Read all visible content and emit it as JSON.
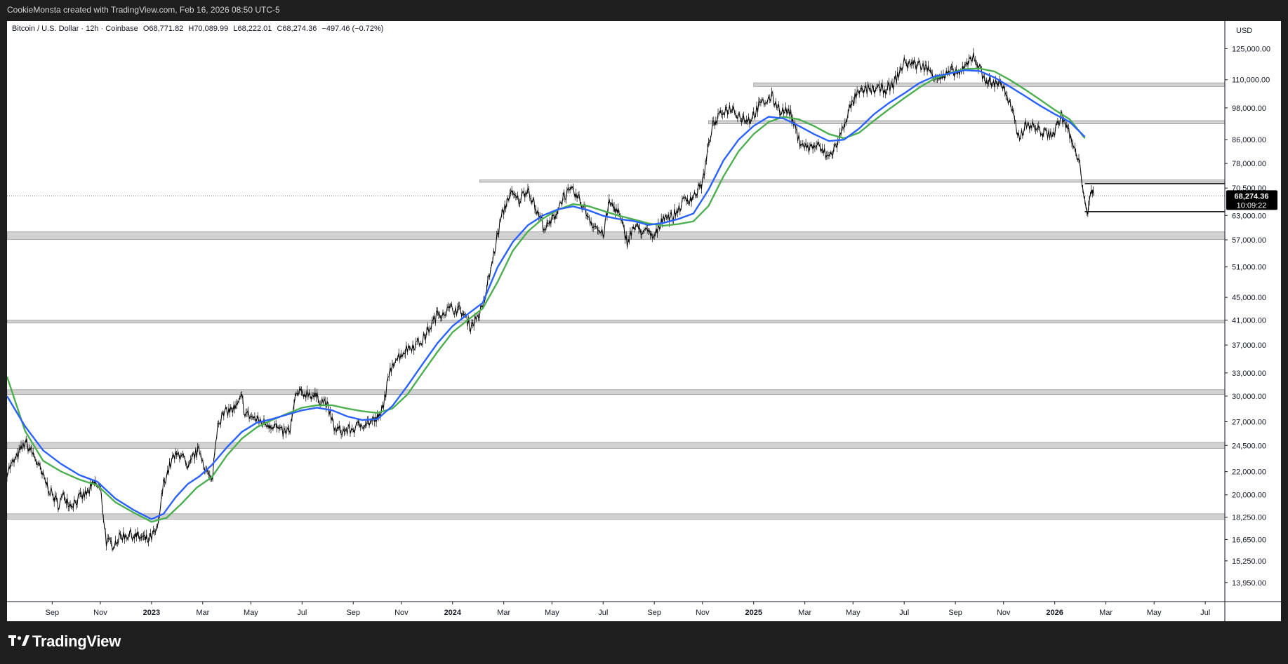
{
  "header": {
    "credit": "CookieMonsta created with TradingView.com, Feb 16, 2026 08:50 UTC-5"
  },
  "legend": {
    "symbol": "Bitcoin / U.S. Dollar · 12h · Coinbase",
    "open": "O68,771.82",
    "high": "H70,089.99",
    "low": "L68,222.01",
    "close": "C68,274.36",
    "change": "−497.46 (−0.72%)",
    "currency": "USD"
  },
  "last_price": {
    "value": "68,274.36",
    "countdown": "10:09:22"
  },
  "footer": {
    "brand": "TradingView"
  },
  "colors": {
    "background": "#ffffff",
    "candles": "#000000",
    "ma_blue": "#2962ff",
    "ma_green": "#4caf50",
    "zone_fill": "#d1d1d1",
    "tag_bg": "#000000"
  },
  "chart_data": {
    "type": "line",
    "title": "Bitcoin / U.S. Dollar · 12h · Coinbase",
    "scale": "log",
    "y_ticks": [
      125000,
      110000,
      98000,
      86000,
      78000,
      70500,
      63000,
      57000,
      51000,
      45000,
      41000,
      37000,
      33000,
      30000,
      27000,
      24500,
      22000,
      20000,
      18250,
      16650,
      15250,
      13950
    ],
    "y_tick_labels": [
      "125,000.00",
      "110,000.00",
      "98,000.00",
      "86,000.00",
      "78,000.00",
      "70,500.00",
      "63,000.00",
      "57,000.00",
      "51,000.00",
      "45,000.00",
      "41,000.00",
      "37,000.00",
      "33,000.00",
      "30,000.00",
      "27,000.00",
      "24,500.00",
      "22,000.00",
      "20,000.00",
      "18,250.00",
      "16,650.00",
      "15,250.00",
      "13,950.00"
    ],
    "ylim": [
      12900,
      140000
    ],
    "x_ticks": [
      {
        "label": "Sep",
        "t": 2022.67,
        "bold": false
      },
      {
        "label": "Nov",
        "t": 2022.83,
        "bold": false
      },
      {
        "label": "2023",
        "t": 2023.0,
        "bold": true
      },
      {
        "label": "Mar",
        "t": 2023.17,
        "bold": false
      },
      {
        "label": "May",
        "t": 2023.33,
        "bold": false
      },
      {
        "label": "Jul",
        "t": 2023.5,
        "bold": false
      },
      {
        "label": "Sep",
        "t": 2023.67,
        "bold": false
      },
      {
        "label": "Nov",
        "t": 2023.83,
        "bold": false
      },
      {
        "label": "2024",
        "t": 2024.0,
        "bold": true
      },
      {
        "label": "Mar",
        "t": 2024.17,
        "bold": false
      },
      {
        "label": "May",
        "t": 2024.33,
        "bold": false
      },
      {
        "label": "Jul",
        "t": 2024.5,
        "bold": false
      },
      {
        "label": "Sep",
        "t": 2024.67,
        "bold": false
      },
      {
        "label": "Nov",
        "t": 2024.83,
        "bold": false
      },
      {
        "label": "2025",
        "t": 2025.0,
        "bold": true
      },
      {
        "label": "Mar",
        "t": 2025.17,
        "bold": false
      },
      {
        "label": "May",
        "t": 2025.33,
        "bold": false
      },
      {
        "label": "Jul",
        "t": 2025.5,
        "bold": false
      },
      {
        "label": "Sep",
        "t": 2025.67,
        "bold": false
      },
      {
        "label": "Nov",
        "t": 2025.83,
        "bold": false
      },
      {
        "label": "2026",
        "t": 2026.0,
        "bold": true
      },
      {
        "label": "Mar",
        "t": 2026.17,
        "bold": false
      },
      {
        "label": "May",
        "t": 2026.33,
        "bold": false
      },
      {
        "label": "Jul",
        "t": 2026.5,
        "bold": false
      }
    ],
    "xlim": [
      2022.52,
      2026.565
    ],
    "price": [
      [
        2022.52,
        22000
      ],
      [
        2022.55,
        23200
      ],
      [
        2022.58,
        24800
      ],
      [
        2022.61,
        23500
      ],
      [
        2022.64,
        21500
      ],
      [
        2022.67,
        20000
      ],
      [
        2022.69,
        19200
      ],
      [
        2022.71,
        20000
      ],
      [
        2022.73,
        19200
      ],
      [
        2022.76,
        19700
      ],
      [
        2022.79,
        20200
      ],
      [
        2022.81,
        21000
      ],
      [
        2022.83,
        20500
      ],
      [
        2022.85,
        16500
      ],
      [
        2022.87,
        16300
      ],
      [
        2022.9,
        16900
      ],
      [
        2022.93,
        17000
      ],
      [
        2022.96,
        16800
      ],
      [
        2022.99,
        16600
      ],
      [
        2023.02,
        17300
      ],
      [
        2023.04,
        21000
      ],
      [
        2023.07,
        23200
      ],
      [
        2023.1,
        23800
      ],
      [
        2023.12,
        22000
      ],
      [
        2023.14,
        23500
      ],
      [
        2023.16,
        24000
      ],
      [
        2023.18,
        22200
      ],
      [
        2023.2,
        21000
      ],
      [
        2023.22,
        27000
      ],
      [
        2023.25,
        28200
      ],
      [
        2023.28,
        28500
      ],
      [
        2023.3,
        29800
      ],
      [
        2023.31,
        28000
      ],
      [
        2023.35,
        27200
      ],
      [
        2023.38,
        26800
      ],
      [
        2023.41,
        26600
      ],
      [
        2023.43,
        25800
      ],
      [
        2023.46,
        26000
      ],
      [
        2023.48,
        30200
      ],
      [
        2023.52,
        30400
      ],
      [
        2023.55,
        29800
      ],
      [
        2023.58,
        29200
      ],
      [
        2023.61,
        26100
      ],
      [
        2023.64,
        26000
      ],
      [
        2023.67,
        26200
      ],
      [
        2023.7,
        26800
      ],
      [
        2023.73,
        27000
      ],
      [
        2023.76,
        27500
      ],
      [
        2023.8,
        34500
      ],
      [
        2023.85,
        36500
      ],
      [
        2023.9,
        37700
      ],
      [
        2023.95,
        42000
      ],
      [
        2024.0,
        43000
      ],
      [
        2024.03,
        42500
      ],
      [
        2024.06,
        40000
      ],
      [
        2024.1,
        43000
      ],
      [
        2024.13,
        51500
      ],
      [
        2024.16,
        62000
      ],
      [
        2024.19,
        69000
      ],
      [
        2024.22,
        67000
      ],
      [
        2024.25,
        70500
      ],
      [
        2024.28,
        64000
      ],
      [
        2024.31,
        59500
      ],
      [
        2024.34,
        63000
      ],
      [
        2024.37,
        68500
      ],
      [
        2024.4,
        69500
      ],
      [
        2024.43,
        66000
      ],
      [
        2024.46,
        61500
      ],
      [
        2024.5,
        58000
      ],
      [
        2024.52,
        66500
      ],
      [
        2024.55,
        64000
      ],
      [
        2024.58,
        56500
      ],
      [
        2024.6,
        60000
      ],
      [
        2024.64,
        59000
      ],
      [
        2024.67,
        57500
      ],
      [
        2024.7,
        63000
      ],
      [
        2024.73,
        62500
      ],
      [
        2024.77,
        67000
      ],
      [
        2024.8,
        68000
      ],
      [
        2024.83,
        72000
      ],
      [
        2024.86,
        90000
      ],
      [
        2024.9,
        97000
      ],
      [
        2024.93,
        98000
      ],
      [
        2024.96,
        94000
      ],
      [
        2024.99,
        93500
      ],
      [
        2025.02,
        99000
      ],
      [
        2025.06,
        102500
      ],
      [
        2025.09,
        97000
      ],
      [
        2025.12,
        96500
      ],
      [
        2025.15,
        86000
      ],
      [
        2025.18,
        83000
      ],
      [
        2025.21,
        84000
      ],
      [
        2025.25,
        80000
      ],
      [
        2025.28,
        85000
      ],
      [
        2025.31,
        95000
      ],
      [
        2025.34,
        103000
      ],
      [
        2025.38,
        106000
      ],
      [
        2025.42,
        105500
      ],
      [
        2025.46,
        107000
      ],
      [
        2025.5,
        118000
      ],
      [
        2025.53,
        117500
      ],
      [
        2025.57,
        116000
      ],
      [
        2025.6,
        112000
      ],
      [
        2025.63,
        111000
      ],
      [
        2025.66,
        114000
      ],
      [
        2025.69,
        113000
      ],
      [
        2025.73,
        122000
      ],
      [
        2025.76,
        112000
      ],
      [
        2025.79,
        108000
      ],
      [
        2025.82,
        109500
      ],
      [
        2025.86,
        96000
      ],
      [
        2025.88,
        87000
      ],
      [
        2025.91,
        92000
      ],
      [
        2025.94,
        90000
      ],
      [
        2025.97,
        88000
      ],
      [
        2026.0,
        88500
      ],
      [
        2026.02,
        95000
      ],
      [
        2026.04,
        91000
      ],
      [
        2026.06,
        84000
      ],
      [
        2026.08,
        78500
      ],
      [
        2026.1,
        68000
      ],
      [
        2026.11,
        62000
      ],
      [
        2026.115,
        67000
      ],
      [
        2026.125,
        70000
      ],
      [
        2026.13,
        68274
      ]
    ],
    "ma_blue": [
      [
        2022.52,
        30000
      ],
      [
        2022.58,
        26500
      ],
      [
        2022.64,
        24000
      ],
      [
        2022.7,
        22700
      ],
      [
        2022.76,
        21700
      ],
      [
        2022.82,
        21100
      ],
      [
        2022.88,
        19700
      ],
      [
        2022.94,
        18800
      ],
      [
        2023.0,
        18100
      ],
      [
        2023.04,
        18500
      ],
      [
        2023.08,
        19800
      ],
      [
        2023.12,
        20900
      ],
      [
        2023.16,
        21600
      ],
      [
        2023.2,
        22600
      ],
      [
        2023.25,
        24300
      ],
      [
        2023.3,
        25900
      ],
      [
        2023.35,
        26900
      ],
      [
        2023.4,
        27300
      ],
      [
        2023.45,
        27800
      ],
      [
        2023.5,
        28300
      ],
      [
        2023.55,
        28600
      ],
      [
        2023.6,
        28300
      ],
      [
        2023.65,
        27600
      ],
      [
        2023.7,
        27200
      ],
      [
        2023.75,
        27300
      ],
      [
        2023.8,
        28800
      ],
      [
        2023.85,
        31300
      ],
      [
        2023.9,
        34200
      ],
      [
        2023.95,
        37300
      ],
      [
        2024.0,
        40000
      ],
      [
        2024.05,
        42000
      ],
      [
        2024.1,
        44000
      ],
      [
        2024.15,
        51000
      ],
      [
        2024.2,
        56500
      ],
      [
        2024.25,
        60500
      ],
      [
        2024.3,
        63000
      ],
      [
        2024.35,
        64600
      ],
      [
        2024.4,
        65400
      ],
      [
        2024.45,
        64400
      ],
      [
        2024.5,
        62900
      ],
      [
        2024.55,
        62100
      ],
      [
        2024.6,
        61600
      ],
      [
        2024.65,
        60600
      ],
      [
        2024.7,
        61100
      ],
      [
        2024.75,
        62100
      ],
      [
        2024.8,
        63500
      ],
      [
        2024.85,
        70000
      ],
      [
        2024.9,
        79000
      ],
      [
        2024.95,
        86000
      ],
      [
        2025.0,
        91000
      ],
      [
        2025.05,
        94500
      ],
      [
        2025.1,
        93800
      ],
      [
        2025.15,
        91000
      ],
      [
        2025.2,
        88000
      ],
      [
        2025.25,
        85500
      ],
      [
        2025.3,
        86000
      ],
      [
        2025.35,
        90000
      ],
      [
        2025.4,
        95500
      ],
      [
        2025.45,
        100000
      ],
      [
        2025.5,
        104000
      ],
      [
        2025.55,
        108500
      ],
      [
        2025.6,
        111500
      ],
      [
        2025.65,
        112800
      ],
      [
        2025.7,
        114400
      ],
      [
        2025.75,
        114000
      ],
      [
        2025.8,
        111000
      ],
      [
        2025.85,
        107000
      ],
      [
        2025.9,
        103000
      ],
      [
        2025.95,
        99000
      ],
      [
        2026.0,
        95500
      ],
      [
        2026.05,
        92500
      ],
      [
        2026.1,
        87000
      ]
    ],
    "ma_green": [
      [
        2022.52,
        32500
      ],
      [
        2022.58,
        26000
      ],
      [
        2022.64,
        23000
      ],
      [
        2022.7,
        22000
      ],
      [
        2022.76,
        21300
      ],
      [
        2022.82,
        20800
      ],
      [
        2022.88,
        19400
      ],
      [
        2022.94,
        18600
      ],
      [
        2023.0,
        17900
      ],
      [
        2023.05,
        18200
      ],
      [
        2023.1,
        19300
      ],
      [
        2023.15,
        20600
      ],
      [
        2023.2,
        21500
      ],
      [
        2023.25,
        23500
      ],
      [
        2023.3,
        25200
      ],
      [
        2023.35,
        26400
      ],
      [
        2023.4,
        27200
      ],
      [
        2023.45,
        27900
      ],
      [
        2023.5,
        28600
      ],
      [
        2023.55,
        28900
      ],
      [
        2023.6,
        28900
      ],
      [
        2023.65,
        28500
      ],
      [
        2023.7,
        28200
      ],
      [
        2023.75,
        28000
      ],
      [
        2023.8,
        28500
      ],
      [
        2023.85,
        30200
      ],
      [
        2023.9,
        33000
      ],
      [
        2023.95,
        36000
      ],
      [
        2024.0,
        39000
      ],
      [
        2024.05,
        41000
      ],
      [
        2024.1,
        43000
      ],
      [
        2024.15,
        48000
      ],
      [
        2024.2,
        54500
      ],
      [
        2024.25,
        59000
      ],
      [
        2024.3,
        62200
      ],
      [
        2024.35,
        64500
      ],
      [
        2024.4,
        66000
      ],
      [
        2024.45,
        65500
      ],
      [
        2024.5,
        64200
      ],
      [
        2024.55,
        63000
      ],
      [
        2024.6,
        62000
      ],
      [
        2024.65,
        61000
      ],
      [
        2024.7,
        60400
      ],
      [
        2024.75,
        60800
      ],
      [
        2024.8,
        61500
      ],
      [
        2024.85,
        65500
      ],
      [
        2024.9,
        74000
      ],
      [
        2024.95,
        82000
      ],
      [
        2025.0,
        88000
      ],
      [
        2025.05,
        92500
      ],
      [
        2025.1,
        94500
      ],
      [
        2025.15,
        93500
      ],
      [
        2025.2,
        91000
      ],
      [
        2025.25,
        88000
      ],
      [
        2025.3,
        86500
      ],
      [
        2025.35,
        88500
      ],
      [
        2025.4,
        93000
      ],
      [
        2025.45,
        97500
      ],
      [
        2025.5,
        102000
      ],
      [
        2025.55,
        106500
      ],
      [
        2025.6,
        110500
      ],
      [
        2025.65,
        113000
      ],
      [
        2025.7,
        114900
      ],
      [
        2025.75,
        115200
      ],
      [
        2025.8,
        113800
      ],
      [
        2025.85,
        110000
      ],
      [
        2025.9,
        105800
      ],
      [
        2025.95,
        101500
      ],
      [
        2026.0,
        97200
      ],
      [
        2026.05,
        93500
      ],
      [
        2026.1,
        86500
      ]
    ],
    "zones": [
      {
        "x_from": 2025.0,
        "low": 107000,
        "high": 108600
      },
      {
        "x_from": 2024.85,
        "low": 91800,
        "high": 93000
      },
      {
        "x_from": 2024.09,
        "low": 72200,
        "high": 72900
      },
      {
        "x_from": 2022.52,
        "low": 57100,
        "high": 58900
      },
      {
        "x_from": 2022.52,
        "low": 40500,
        "high": 41000
      },
      {
        "x_from": 2022.52,
        "low": 30200,
        "high": 30800
      },
      {
        "x_from": 2022.52,
        "low": 24200,
        "high": 24800
      },
      {
        "x_from": 2022.52,
        "low": 18100,
        "high": 18500
      }
    ],
    "range_box": {
      "x_from": 2026.1,
      "high": 71800,
      "low": 64000
    },
    "last_close": 68274.36
  }
}
